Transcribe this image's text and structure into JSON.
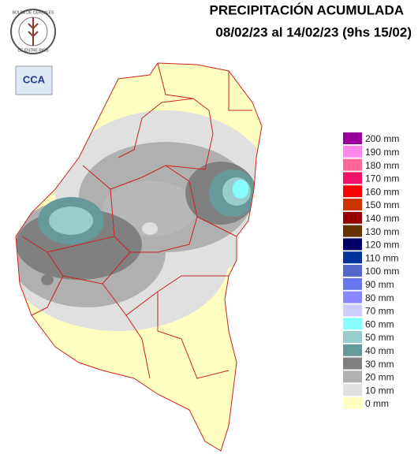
{
  "header": {
    "title": "PRECIPITACIÓN ACUMULADA",
    "subtitle": "08/02/23 al 14/02/23 (9hs 15/02)"
  },
  "logo": {
    "top_text": "BOLSA DE CEREALES",
    "bottom_text": "DE ENTRE RIOS",
    "badge": "CCA"
  },
  "legend": [
    {
      "label": "200 mm",
      "color": "#990099"
    },
    {
      "label": "190 mm",
      "color": "#ff88ee"
    },
    {
      "label": "180 mm",
      "color": "#ff6699"
    },
    {
      "label": "170 mm",
      "color": "#ee1166"
    },
    {
      "label": "160 mm",
      "color": "#ff0000"
    },
    {
      "label": "150 mm",
      "color": "#cc3300"
    },
    {
      "label": "140 mm",
      "color": "#990000"
    },
    {
      "label": "130 mm",
      "color": "#663300"
    },
    {
      "label": "120 mm",
      "color": "#000066"
    },
    {
      "label": "110 mm",
      "color": "#003399"
    },
    {
      "label": "100 mm",
      "color": "#5566cc"
    },
    {
      "label": "90 mm",
      "color": "#6677ee"
    },
    {
      "label": "80 mm",
      "color": "#8888ff"
    },
    {
      "label": "70 mm",
      "color": "#ccccff"
    },
    {
      "label": "60 mm",
      "color": "#88ffff"
    },
    {
      "label": "50 mm",
      "color": "#99cccc"
    },
    {
      "label": "40 mm",
      "color": "#669999"
    },
    {
      "label": "30 mm",
      "color": "#808080"
    },
    {
      "label": "20 mm",
      "color": "#b0b0b0"
    },
    {
      "label": "10 mm",
      "color": "#e0e0e0"
    },
    {
      "label": "0 mm",
      "color": "#ffffc0"
    }
  ]
}
